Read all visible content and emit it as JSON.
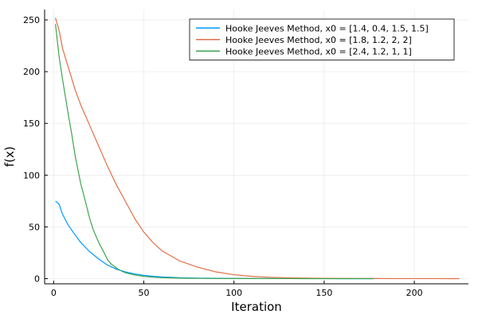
{
  "chart_data": {
    "type": "line",
    "title": "",
    "xlabel": "Iteration",
    "ylabel": "f(x)",
    "xlim": [
      -5,
      230
    ],
    "ylim": [
      -5,
      260
    ],
    "xticks": [
      0,
      50,
      100,
      150,
      200
    ],
    "yticks": [
      0,
      50,
      100,
      150,
      200,
      250
    ],
    "grid": true,
    "legend_position": "top-right",
    "series": [
      {
        "name": "Hooke Jeeves Method, x0 = [1.4, 0.4, 1.5, 1.5]",
        "color": "#009AFA",
        "x": [
          1,
          3,
          5,
          8,
          12,
          15,
          20,
          25,
          30,
          35,
          40,
          45,
          50,
          55,
          60,
          70,
          80,
          90,
          100,
          110,
          120,
          130,
          140,
          150,
          160,
          170,
          178
        ],
        "y": [
          75,
          72,
          62,
          52,
          42,
          35,
          26,
          19,
          13,
          9,
          6.5,
          4.5,
          3.2,
          2.3,
          1.6,
          0.9,
          0.5,
          0.3,
          0.2,
          0.12,
          0.08,
          0.05,
          0.03,
          0.02,
          0.01,
          0.01,
          0.01
        ]
      },
      {
        "name": "Hooke Jeeves Method, x0 = [1.8, 1.2, 2, 2]",
        "color": "#E36F47",
        "x": [
          1,
          3,
          5,
          8,
          12,
          15,
          20,
          25,
          30,
          35,
          40,
          45,
          50,
          55,
          60,
          70,
          80,
          90,
          100,
          110,
          120,
          130,
          140,
          150,
          160,
          170,
          180,
          190,
          200,
          210,
          220,
          225
        ],
        "y": [
          252,
          240,
          222,
          205,
          182,
          168,
          148,
          128,
          108,
          90,
          74,
          58,
          45,
          35,
          27,
          17,
          11,
          6.5,
          3.8,
          2.2,
          1.3,
          0.8,
          0.5,
          0.3,
          0.2,
          0.12,
          0.08,
          0.05,
          0.03,
          0.02,
          0.01,
          0.01
        ]
      },
      {
        "name": "Hooke Jeeves Method, x0 = [2.4, 1.2, 1, 1]",
        "color": "#3EA44E",
        "x": [
          1,
          3,
          5,
          8,
          10,
          12,
          15,
          18,
          20,
          22,
          25,
          28,
          30,
          32,
          35,
          38,
          40,
          45,
          50,
          55,
          60,
          70,
          80,
          90,
          100,
          110,
          120,
          130,
          140,
          150,
          160,
          170,
          177
        ],
        "y": [
          246,
          215,
          192,
          160,
          140,
          118,
          92,
          72,
          58,
          47,
          35,
          25,
          18,
          14,
          10,
          7,
          5.5,
          3.5,
          2.2,
          1.4,
          0.9,
          0.45,
          0.25,
          0.15,
          0.1,
          0.06,
          0.04,
          0.02,
          0.01,
          0.01,
          0.01,
          0.01,
          0.01
        ]
      }
    ]
  }
}
